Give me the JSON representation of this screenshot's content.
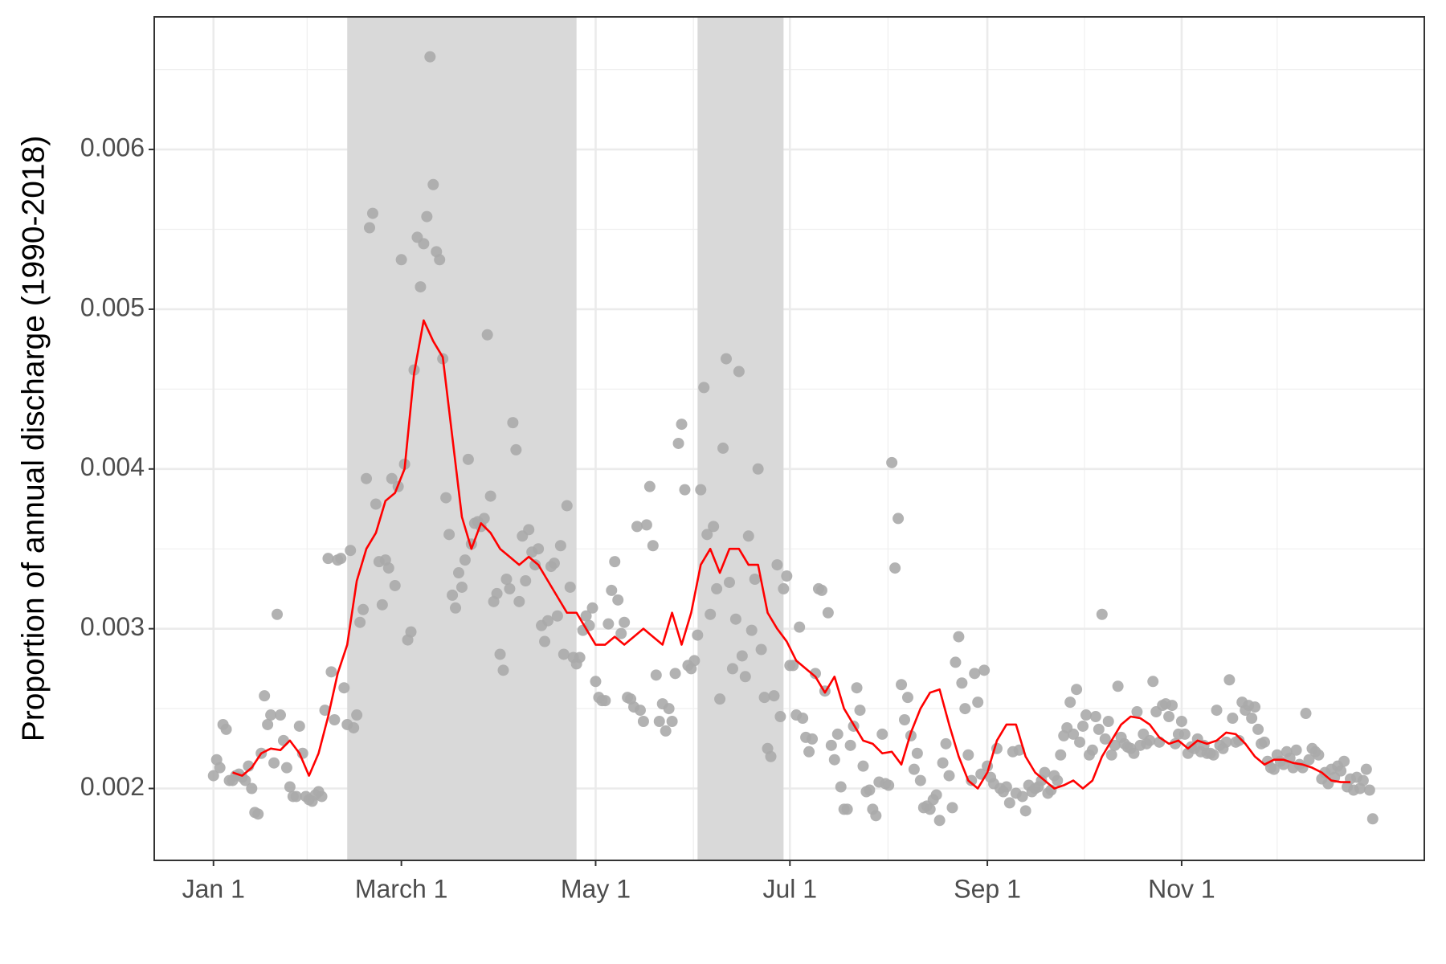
{
  "chart_data": {
    "type": "scatter",
    "y_label": "Proportion of annual discharge (1990-2018)",
    "xlim": [
      -17.6,
      381.2
    ],
    "ylim": [
      0.00155,
      0.00683
    ],
    "xticks": [
      {
        "value": 1,
        "label": "Jan 1"
      },
      {
        "value": 60,
        "label": "March 1"
      },
      {
        "value": 121,
        "label": "May 1"
      },
      {
        "value": 182,
        "label": "Jul 1"
      },
      {
        "value": 244,
        "label": "Sep 1"
      },
      {
        "value": 305,
        "label": "Nov 1"
      }
    ],
    "xminor": [
      30.4,
      90.3,
      151.7,
      212.8,
      274.5,
      335
    ],
    "yticks": [
      0.002,
      0.003,
      0.004,
      0.005,
      0.006
    ],
    "yminor": [
      0.0025,
      0.0035,
      0.0045,
      0.0055,
      0.0065
    ],
    "grid": true,
    "shaded": [
      [
        43,
        115
      ],
      [
        153,
        180
      ]
    ],
    "shade_color": "#d9d9d9",
    "series": [
      {
        "type": "scatter",
        "color": "#aaaaaa",
        "x": [
          1,
          2,
          3,
          4,
          5,
          6,
          7,
          8,
          9,
          10,
          11,
          12,
          13,
          14,
          15,
          16,
          17,
          18,
          19,
          20,
          21,
          22,
          23,
          24,
          25,
          26,
          27,
          28,
          29,
          30,
          31,
          32,
          33,
          34,
          35,
          36,
          37,
          38,
          39,
          40,
          41,
          42,
          43,
          44,
          45,
          46,
          47,
          48,
          49,
          50,
          51,
          52,
          53,
          54,
          55,
          56,
          57,
          58,
          59,
          60,
          61,
          62,
          63,
          64,
          65,
          66,
          67,
          68,
          69,
          70,
          71,
          72,
          73,
          74,
          75,
          76,
          77,
          78,
          79,
          80,
          81,
          82,
          83,
          84,
          85,
          86,
          87,
          88,
          89,
          90,
          91,
          92,
          93,
          94,
          95,
          96,
          97,
          98,
          99,
          100,
          101,
          102,
          103,
          104,
          105,
          106,
          107,
          108,
          109,
          110,
          111,
          112,
          113,
          114,
          115,
          116,
          117,
          118,
          119,
          120,
          121,
          122,
          123,
          124,
          125,
          126,
          127,
          128,
          129,
          130,
          131,
          132,
          133,
          134,
          135,
          136,
          137,
          138,
          139,
          140,
          141,
          142,
          143,
          144,
          145,
          146,
          147,
          148,
          149,
          150,
          151,
          152,
          153,
          154,
          155,
          156,
          157,
          158,
          159,
          160,
          161,
          162,
          163,
          164,
          165,
          166,
          167,
          168,
          169,
          170,
          171,
          172,
          173,
          174,
          175,
          176,
          177,
          178,
          179,
          180,
          181,
          182,
          183,
          184,
          185,
          186,
          187,
          188,
          189,
          190,
          191,
          192,
          193,
          194,
          195,
          196,
          197,
          198,
          199,
          200,
          201,
          202,
          203,
          204,
          205,
          206,
          207,
          208,
          209,
          210,
          211,
          212,
          213,
          214,
          215,
          216,
          217,
          218,
          219,
          220,
          221,
          222,
          223,
          224,
          225,
          226,
          227,
          228,
          229,
          230,
          231,
          232,
          233,
          234,
          235,
          236,
          237,
          238,
          239,
          240,
          241,
          242,
          243,
          244,
          245,
          246,
          247,
          248,
          249,
          250,
          251,
          252,
          253,
          254,
          255,
          256,
          257,
          258,
          259,
          260,
          261,
          262,
          263,
          264,
          265,
          266,
          267,
          268,
          269,
          270,
          271,
          272,
          273,
          274,
          275,
          276,
          277,
          278,
          279,
          280,
          281,
          282,
          283,
          284,
          285,
          286,
          287,
          288,
          289,
          290,
          291,
          292,
          293,
          294,
          295,
          296,
          297,
          298,
          299,
          300,
          301,
          302,
          303,
          304,
          305,
          306,
          307,
          308,
          309,
          310,
          311,
          312,
          313,
          314,
          315,
          316,
          317,
          318,
          319,
          320,
          321,
          322,
          323,
          324,
          325,
          326,
          327,
          328,
          329,
          330,
          331,
          332,
          333,
          334,
          335,
          336,
          337,
          338,
          339,
          340,
          341,
          342,
          343,
          344,
          345,
          346,
          347,
          348,
          349,
          350,
          351,
          352,
          353,
          354,
          355,
          356,
          357,
          358,
          359,
          360,
          361,
          362,
          363,
          364,
          365
        ],
        "values": [
          0.00208,
          0.00218,
          0.00213,
          0.0024,
          0.00237,
          0.00205,
          0.00205,
          0.00208,
          0.00209,
          0.00207,
          0.00205,
          0.00214,
          0.002,
          0.00185,
          0.00184,
          0.00222,
          0.00258,
          0.0024,
          0.00246,
          0.00216,
          0.00309,
          0.00246,
          0.0023,
          0.00213,
          0.00201,
          0.00195,
          0.00195,
          0.00239,
          0.00222,
          0.00195,
          0.00193,
          0.00192,
          0.00196,
          0.00198,
          0.00195,
          0.00249,
          0.00344,
          0.00273,
          0.00243,
          0.00343,
          0.00344,
          0.00263,
          0.0024,
          0.00349,
          0.00238,
          0.00246,
          0.00304,
          0.00312,
          0.00394,
          0.00551,
          0.0056,
          0.00378,
          0.00342,
          0.00315,
          0.00343,
          0.00338,
          0.00394,
          0.00327,
          0.00389,
          0.00531,
          0.00403,
          0.00293,
          0.00298,
          0.00462,
          0.00545,
          0.00514,
          0.00541,
          0.00558,
          0.00658,
          0.00578,
          0.00536,
          0.00531,
          0.00469,
          0.00382,
          0.00359,
          0.00321,
          0.00313,
          0.00335,
          0.00326,
          0.00343,
          0.00406,
          0.00353,
          0.00366,
          0.00367,
          0.00364,
          0.00369,
          0.00484,
          0.00383,
          0.00317,
          0.00322,
          0.00284,
          0.00274,
          0.00331,
          0.00325,
          0.00429,
          0.00412,
          0.00317,
          0.00358,
          0.0033,
          0.00362,
          0.00348,
          0.0034,
          0.0035,
          0.00302,
          0.00292,
          0.00305,
          0.00339,
          0.00341,
          0.00308,
          0.00352,
          0.00284,
          0.00377,
          0.00326,
          0.00282,
          0.00278,
          0.00282,
          0.00299,
          0.00308,
          0.00302,
          0.00313,
          0.00267,
          0.00257,
          0.00255,
          0.00255,
          0.00303,
          0.00324,
          0.00342,
          0.00318,
          0.00297,
          0.00304,
          0.00257,
          0.00256,
          0.00251,
          0.00364,
          0.00249,
          0.00242,
          0.00365,
          0.00389,
          0.00352,
          0.00271,
          0.00242,
          0.00253,
          0.00236,
          0.0025,
          0.00242,
          0.00272,
          0.00416,
          0.00428,
          0.00387,
          0.00277,
          0.00275,
          0.0028,
          0.00296,
          0.00387,
          0.00451,
          0.00359,
          0.00309,
          0.00364,
          0.00325,
          0.00256,
          0.00413,
          0.00469,
          0.00329,
          0.00275,
          0.00306,
          0.00461,
          0.00283,
          0.0027,
          0.00358,
          0.00299,
          0.00331,
          0.004,
          0.00287,
          0.00257,
          0.00225,
          0.0022,
          0.00258,
          0.0034,
          0.00245,
          0.00325,
          0.00333,
          0.00277,
          0.00277,
          0.00246,
          0.00301,
          0.00244,
          0.00232,
          0.00223,
          0.00231,
          0.00272,
          0.00325,
          0.00324,
          0.00261,
          0.0031,
          0.00227,
          0.00218,
          0.00234,
          0.00201,
          0.00187,
          0.00187,
          0.00227,
          0.00239,
          0.00263,
          0.00249,
          0.00214,
          0.00198,
          0.00199,
          0.00187,
          0.00183,
          0.00204,
          0.00234,
          0.00203,
          0.00202,
          0.00404,
          0.00338,
          0.00369,
          0.00265,
          0.00243,
          0.00257,
          0.00233,
          0.00212,
          0.00222,
          0.00205,
          0.00188,
          0.00189,
          0.00187,
          0.00193,
          0.00196,
          0.0018,
          0.00216,
          0.00228,
          0.00208,
          0.00188,
          0.00279,
          0.00295,
          0.00266,
          0.0025,
          0.00221,
          0.00205,
          0.00272,
          0.00254,
          0.00209,
          0.00274,
          0.00214,
          0.00207,
          0.00203,
          0.00225,
          0.002,
          0.00198,
          0.00201,
          0.00191,
          0.00223,
          0.00197,
          0.00224,
          0.00195,
          0.00186,
          0.00202,
          0.00198,
          0.002,
          0.00201,
          0.00205,
          0.0021,
          0.00197,
          0.00199,
          0.00208,
          0.00205,
          0.00221,
          0.00233,
          0.00238,
          0.00254,
          0.00234,
          0.00262,
          0.00229,
          0.00239,
          0.00246,
          0.00221,
          0.00224,
          0.00245,
          0.00237,
          0.00309,
          0.00231,
          0.00242,
          0.00221,
          0.00227,
          0.00264,
          0.00232,
          0.00228,
          0.00226,
          0.00225,
          0.00222,
          0.00248,
          0.00227,
          0.00234,
          0.00228,
          0.0023,
          0.00267,
          0.00248,
          0.00229,
          0.00252,
          0.00253,
          0.00245,
          0.00252,
          0.00228,
          0.00234,
          0.00242,
          0.00234,
          0.00222,
          0.00226,
          0.00225,
          0.00231,
          0.00223,
          0.00227,
          0.00222,
          0.00222,
          0.00221,
          0.00249,
          0.00227,
          0.00225,
          0.00229,
          0.00268,
          0.00244,
          0.00229,
          0.0023,
          0.00254,
          0.00249,
          0.00252,
          0.00244,
          0.00251,
          0.00237,
          0.00228,
          0.00229,
          0.00217,
          0.00213,
          0.00212,
          0.00221,
          0.00217,
          0.00215,
          0.00223,
          0.00219,
          0.00213,
          0.00224,
          0.00215,
          0.00213,
          0.00247,
          0.00218,
          0.00225,
          0.00223,
          0.00221,
          0.00206,
          0.0021,
          0.00203,
          0.00212,
          0.00207,
          0.00214,
          0.00211,
          0.00217,
          0.00201,
          0.00206,
          0.00199,
          0.00207,
          0.002,
          0.00205,
          0.00212,
          0.00199,
          0.00181
        ]
      },
      {
        "type": "line",
        "color": "#ff0000",
        "x": [
          7,
          10,
          13,
          16,
          19,
          22,
          25,
          28,
          31,
          34,
          37,
          40,
          43,
          46,
          49,
          52,
          55,
          58,
          61,
          64,
          67,
          70,
          73,
          76,
          79,
          82,
          85,
          88,
          91,
          94,
          97,
          100,
          103,
          106,
          109,
          112,
          115,
          118,
          121,
          124,
          127,
          130,
          133,
          136,
          139,
          142,
          145,
          148,
          151,
          154,
          157,
          160,
          163,
          166,
          169,
          172,
          175,
          178,
          181,
          184,
          187,
          190,
          193,
          196,
          199,
          202,
          205,
          208,
          211,
          214,
          217,
          220,
          223,
          226,
          229,
          232,
          235,
          238,
          241,
          244,
          247,
          250,
          253,
          256,
          259,
          262,
          265,
          268,
          271,
          274,
          277,
          280,
          283,
          286,
          289,
          292,
          295,
          298,
          301,
          304,
          307,
          310,
          313,
          316,
          319,
          322,
          325,
          328,
          331,
          334,
          337,
          340,
          343,
          346,
          349,
          352,
          355,
          358
        ],
        "values": [
          0.0021,
          0.00208,
          0.00213,
          0.00222,
          0.00225,
          0.00224,
          0.0023,
          0.00222,
          0.00208,
          0.00222,
          0.00245,
          0.00272,
          0.0029,
          0.0033,
          0.0035,
          0.0036,
          0.0038,
          0.00385,
          0.004,
          0.0046,
          0.00493,
          0.0048,
          0.0047,
          0.0042,
          0.0037,
          0.0035,
          0.00366,
          0.0036,
          0.0035,
          0.00345,
          0.0034,
          0.00345,
          0.0034,
          0.0033,
          0.0032,
          0.0031,
          0.0031,
          0.003,
          0.0029,
          0.0029,
          0.00295,
          0.0029,
          0.00295,
          0.003,
          0.00295,
          0.0029,
          0.0031,
          0.0029,
          0.0031,
          0.0034,
          0.0035,
          0.00335,
          0.0035,
          0.0035,
          0.0034,
          0.0034,
          0.0031,
          0.003,
          0.00292,
          0.0028,
          0.00275,
          0.0027,
          0.0026,
          0.0027,
          0.0025,
          0.0024,
          0.0023,
          0.00228,
          0.00222,
          0.00223,
          0.00215,
          0.00235,
          0.0025,
          0.0026,
          0.00262,
          0.0024,
          0.0022,
          0.00205,
          0.002,
          0.0021,
          0.0023,
          0.0024,
          0.0024,
          0.0022,
          0.0021,
          0.00205,
          0.002,
          0.00202,
          0.00205,
          0.002,
          0.00205,
          0.0022,
          0.0023,
          0.0024,
          0.00245,
          0.00244,
          0.0024,
          0.00232,
          0.00228,
          0.0023,
          0.00225,
          0.0023,
          0.00228,
          0.0023,
          0.00235,
          0.00234,
          0.00228,
          0.0022,
          0.00215,
          0.00218,
          0.00218,
          0.00216,
          0.00215,
          0.00213,
          0.0021,
          0.00205,
          0.00204,
          0.00204
        ]
      }
    ]
  }
}
